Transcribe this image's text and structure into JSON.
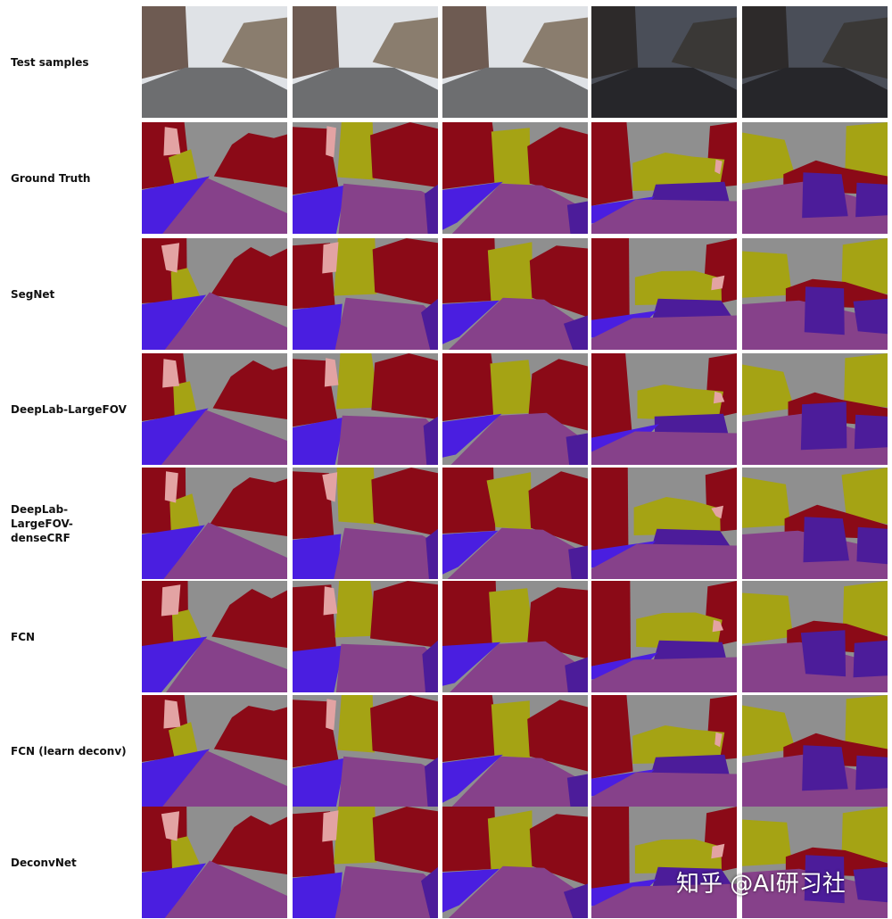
{
  "rows": [
    {
      "label": "Test samples"
    },
    {
      "label": "Ground Truth"
    },
    {
      "label": "SegNet"
    },
    {
      "label": "DeepLab-LargeFOV"
    },
    {
      "label": "DeepLab-LargeFOV-denseCRF"
    },
    {
      "label": "FCN"
    },
    {
      "label": "FCN (learn deconv)"
    },
    {
      "label": "DeconvNet"
    }
  ],
  "watermark": "知乎 @AI研习社"
}
